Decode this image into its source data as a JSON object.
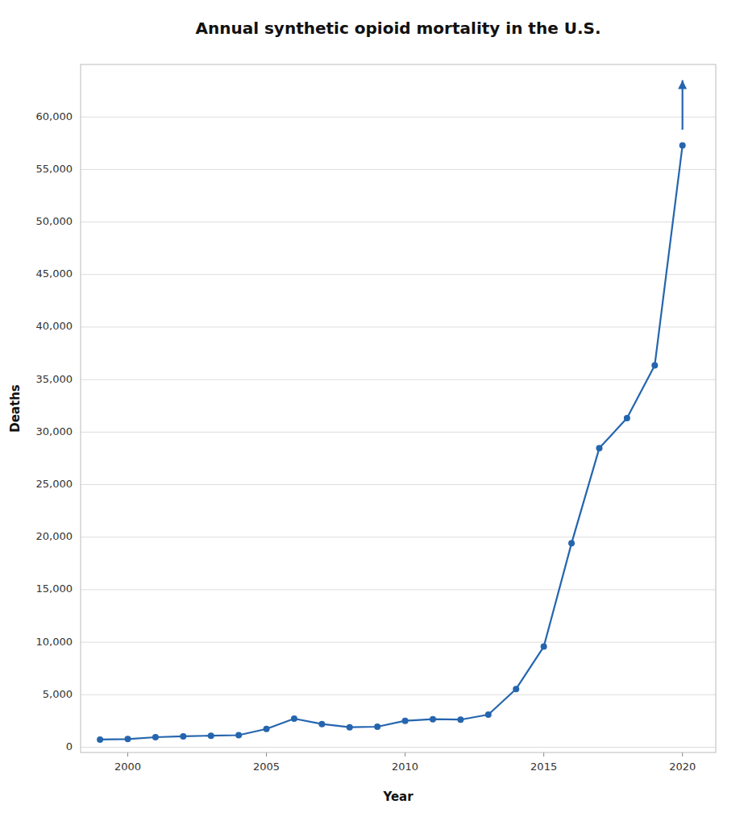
{
  "chart_data": {
    "type": "line",
    "title": "Annual synthetic opioid mortality in the U.S.",
    "x_label": "Year",
    "y_label": "Deaths",
    "x": [
      1999,
      2000,
      2001,
      2002,
      2003,
      2004,
      2005,
      2006,
      2007,
      2008,
      2009,
      2010,
      2011,
      2012,
      2013,
      2014,
      2015,
      2016,
      2017,
      2018,
      2019,
      2020
    ],
    "values": [
      730,
      782,
      957,
      1040,
      1100,
      1150,
      1742,
      2722,
      2213,
      1904,
      1956,
      2519,
      2666,
      2628,
      3105,
      5544,
      9580,
      19413,
      28466,
      31335,
      36359,
      57287
    ],
    "color": "#2565ae",
    "marker": "circle",
    "xlim": [
      1998.3,
      2021.2
    ],
    "ylim": [
      -500,
      65000
    ],
    "xticks": [
      2000,
      2005,
      2010,
      2015,
      2020
    ],
    "yticks": [
      0,
      {
        "value": 5000,
        "label": "5,000"
      },
      {
        "value": 10000,
        "label": "10,000"
      },
      {
        "value": 15000,
        "label": "15,000"
      },
      {
        "value": 20000,
        "label": "20,000"
      },
      {
        "value": 25000,
        "label": "25,000"
      },
      {
        "value": 30000,
        "label": "30,000"
      },
      {
        "value": 35000,
        "label": "35,000"
      },
      {
        "value": 40000,
        "label": "40,000"
      },
      {
        "value": 45000,
        "label": "45,000"
      },
      {
        "value": 50000,
        "label": "50,000"
      },
      {
        "value": 55000,
        "label": "55,000"
      },
      {
        "value": 60000,
        "label": "60,000"
      }
    ],
    "grid": true,
    "annotations": [
      {
        "type": "arrow",
        "x": 2020,
        "y_start": 58787,
        "y_end": 63500
      }
    ]
  }
}
